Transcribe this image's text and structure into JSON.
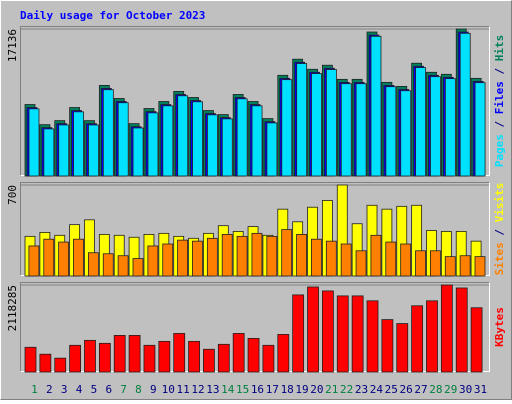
{
  "chart_data": [
    {
      "type": "bar",
      "title": "Daily usage for October 2023",
      "ylim": [
        0,
        17136
      ],
      "yticks": [
        17136
      ],
      "legend_separator": " / ",
      "series": [
        {
          "name": "Pages",
          "color": "#00e0ff",
          "values": [
            7830,
            5490,
            5950,
            7480,
            5950,
            10060,
            8540,
            5600,
            7360,
            8180,
            9350,
            8650,
            7130,
            6660,
            9000,
            8180,
            6190,
            11230,
            13110,
            11940,
            12410,
            10760,
            10760,
            16280,
            10410,
            9940,
            12640,
            11580,
            11350,
            16630,
            10880
          ]
        },
        {
          "name": "Files",
          "color": "#0000ff",
          "values": [
            7980,
            5640,
            6100,
            7630,
            6100,
            10210,
            8690,
            5750,
            7510,
            8330,
            9500,
            8800,
            7280,
            6810,
            9150,
            8330,
            6340,
            11380,
            13260,
            12090,
            12560,
            10910,
            10910,
            16430,
            10560,
            10090,
            12790,
            11730,
            11500,
            16780,
            11030
          ]
        },
        {
          "name": "Hits",
          "color": "#00805c",
          "values": [
            8333,
            5986,
            6455,
            7981,
            6455,
            10563,
            9037,
            6103,
            7864,
            8685,
            9859,
            9155,
            7629,
            7160,
            9507,
            8685,
            6690,
            11737,
            13615,
            12441,
            12911,
            11267,
            11267,
            16784,
            10915,
            10446,
            13145,
            12089,
            11854,
            17136,
            11385
          ]
        }
      ]
    },
    {
      "type": "bar",
      "ylim": [
        0,
        700
      ],
      "yticks": [
        700
      ],
      "legend_separator": " / ",
      "series": [
        {
          "name": "Sites",
          "color": "#ff8000",
          "values": [
            231,
            283,
            261,
            283,
            179,
            171,
            156,
            134,
            231,
            246,
            276,
            268,
            290,
            320,
            305,
            328,
            305,
            357,
            320,
            283,
            268,
            246,
            194,
            313,
            261,
            246,
            194,
            194,
            149,
            156,
            149
          ]
        },
        {
          "name": "Visits",
          "color": "#ffff00",
          "values": [
            305,
            335,
            313,
            395,
            432,
            320,
            313,
            298,
            320,
            328,
            305,
            290,
            328,
            387,
            343,
            380,
            313,
            514,
            417,
            529,
            581,
            700,
            402,
            544,
            514,
            536,
            544,
            350,
            343,
            343,
            268
          ]
        }
      ]
    },
    {
      "type": "bar",
      "ylim": [
        0,
        2118285
      ],
      "yticks": [
        2118285
      ],
      "categories": [
        "1",
        "2",
        "3",
        "4",
        "5",
        "6",
        "7",
        "8",
        "9",
        "10",
        "11",
        "12",
        "13",
        "14",
        "15",
        "16",
        "17",
        "18",
        "19",
        "20",
        "21",
        "22",
        "23",
        "24",
        "25",
        "26",
        "27",
        "28",
        "29",
        "30",
        "31"
      ],
      "category_colors": [
        "#008040",
        "#000080",
        "#000080",
        "#000080",
        "#000080",
        "#000080",
        "#008040",
        "#008040",
        "#000080",
        "#000080",
        "#000080",
        "#000080",
        "#000080",
        "#008040",
        "#008040",
        "#000080",
        "#000080",
        "#000080",
        "#000080",
        "#000080",
        "#008040",
        "#008040",
        "#000080",
        "#000080",
        "#000080",
        "#000080",
        "#000080",
        "#008040",
        "#008040",
        "#000080",
        "#000080"
      ],
      "series": [
        {
          "name": "KBytes",
          "color": "#ff0000",
          "values": [
            601783,
            433283,
            336999,
            649925,
            770283,
            698069,
            890641,
            890641,
            649925,
            746211,
            938783,
            746211,
            553641,
            674000,
            938783,
            818425,
            649925,
            914712,
            1877570,
            2070141,
            1973856,
            1853498,
            1853498,
            1733141,
            1275783,
            1179497,
            1612783,
            1733141,
            2118285,
            2046070,
            1564641
          ]
        }
      ]
    }
  ]
}
